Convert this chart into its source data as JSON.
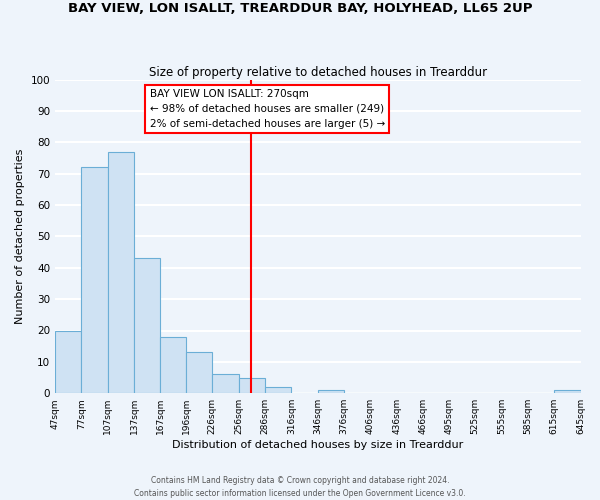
{
  "title": "BAY VIEW, LON ISALLT, TREARDDUR BAY, HOLYHEAD, LL65 2UP",
  "subtitle": "Size of property relative to detached houses in Trearddur",
  "xlabel": "Distribution of detached houses by size in Trearddur",
  "ylabel": "Number of detached properties",
  "footer_line1": "Contains HM Land Registry data © Crown copyright and database right 2024.",
  "footer_line2": "Contains public sector information licensed under the Open Government Licence v3.0.",
  "bar_edges": [
    47,
    77,
    107,
    137,
    167,
    196,
    226,
    256,
    286,
    316,
    346,
    376,
    406,
    436,
    466,
    495,
    525,
    555,
    585,
    615,
    645
  ],
  "bar_heights": [
    20,
    72,
    77,
    43,
    18,
    13,
    6,
    5,
    2,
    0,
    1,
    0,
    0,
    0,
    0,
    0,
    0,
    0,
    0,
    1,
    0
  ],
  "bar_color": "#cfe2f3",
  "bar_edge_color": "#6baed6",
  "reference_line_x": 270,
  "reference_line_color": "red",
  "annotation_title": "BAY VIEW LON ISALLT: 270sqm",
  "annotation_line1": "← 98% of detached houses are smaller (249)",
  "annotation_line2": "2% of semi-detached houses are larger (5) →",
  "annotation_box_color": "white",
  "annotation_box_edge_color": "red",
  "xlim_left": 47,
  "xlim_right": 645,
  "ylim_top": 100,
  "tick_labels": [
    "47sqm",
    "77sqm",
    "107sqm",
    "137sqm",
    "167sqm",
    "196sqm",
    "226sqm",
    "256sqm",
    "286sqm",
    "316sqm",
    "346sqm",
    "376sqm",
    "406sqm",
    "436sqm",
    "466sqm",
    "495sqm",
    "525sqm",
    "555sqm",
    "585sqm",
    "615sqm",
    "645sqm"
  ],
  "tick_positions": [
    47,
    77,
    107,
    137,
    167,
    196,
    226,
    256,
    286,
    316,
    346,
    376,
    406,
    436,
    466,
    495,
    525,
    555,
    585,
    615,
    645
  ],
  "background_color": "#eef4fb",
  "grid_color": "white",
  "yticks": [
    0,
    10,
    20,
    30,
    40,
    50,
    60,
    70,
    80,
    90,
    100
  ]
}
